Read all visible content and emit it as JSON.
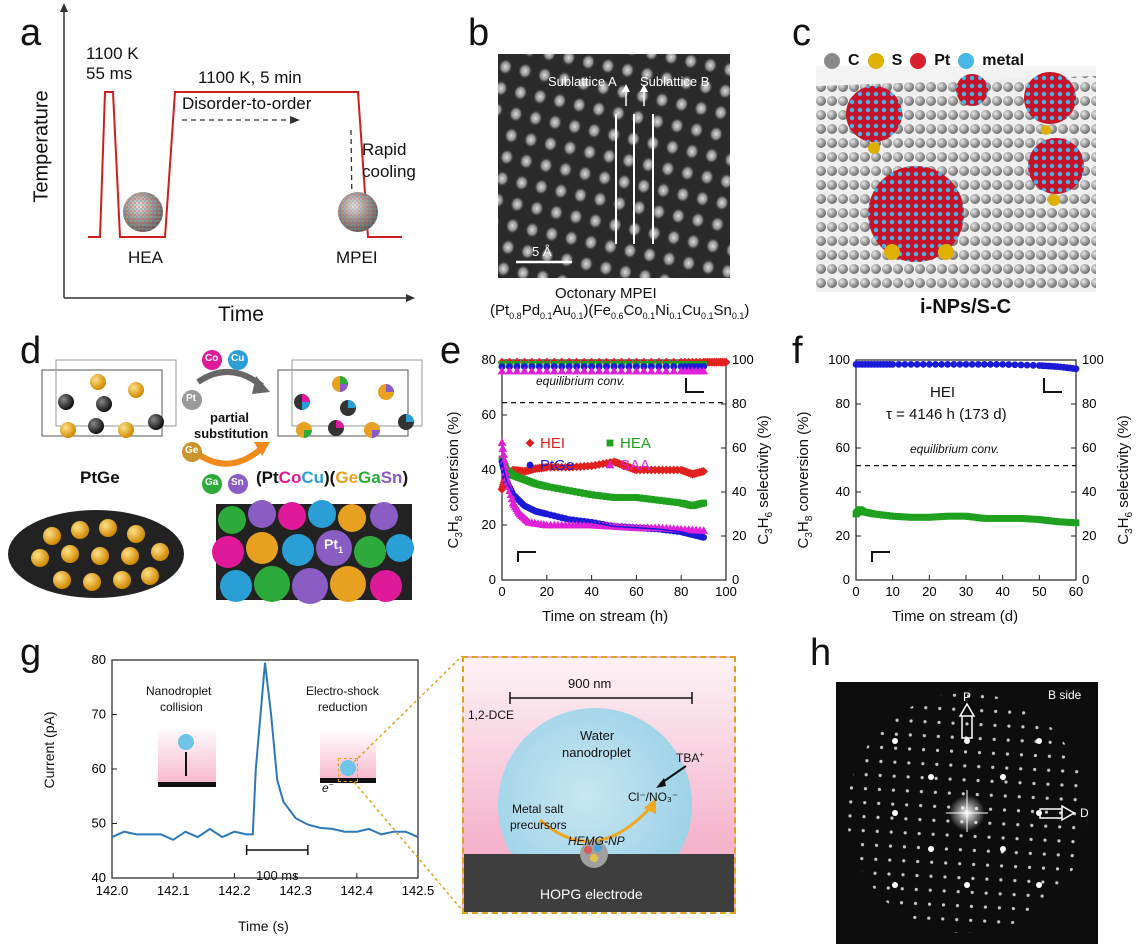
{
  "panels": {
    "a": {
      "label": "a",
      "ylabel": "Temperature",
      "xlabel": "Time",
      "pulse_top": "1100 K",
      "pulse_bottom": "55 ms",
      "anneal_top": "1100 K, 5 min",
      "anneal_bottom": "Disorder-to-order",
      "cool_1": "Rapid",
      "cool_2": "cooling",
      "start_name": "HEA",
      "end_name": "MPEI"
    },
    "b": {
      "label": "b",
      "sublattice_a": "Sublattice A",
      "sublattice_b": "Sublattice B",
      "scale": "5 Å",
      "caption1": "Octonary MPEI",
      "caption2_parts": [
        "(Pt",
        "0.8",
        "Pd",
        "0.1",
        "Au",
        "0.1",
        ")(Fe",
        "0.6",
        "Co",
        "0.1",
        "Ni",
        "0.1",
        "Cu",
        "0.1",
        "Sn",
        "0.1",
        ")"
      ]
    },
    "c": {
      "label": "c",
      "legend": [
        "C",
        "S",
        "Pt",
        "metal"
      ],
      "legend_colors": [
        "#8a8a8a",
        "#e0b000",
        "#d81f2a",
        "#45b8e8"
      ],
      "caption": "i-NPs/S-C"
    },
    "d": {
      "label": "d",
      "left_name": "PtGe",
      "process1": "partial",
      "process2": "substitution",
      "atom_pt": "Pt",
      "atom_co": "Co",
      "atom_cu": "Cu",
      "atom_ge": "Ge",
      "atom_ga": "Ga",
      "atom_sn": "Sn",
      "formula": [
        "(Pt",
        "Co",
        "Cu",
        ")(",
        "Ge",
        "Ga",
        "Sn",
        ")"
      ],
      "formula_colors": [
        "#111111",
        "#e0199a",
        "#2a9fd6",
        "#111111",
        "#e8a020",
        "#2eaa3a",
        "#8a5cc4",
        "#111111"
      ],
      "site_label": "Pt",
      "site_sub": "1"
    },
    "g": {
      "label": "g",
      "inset1_1": "Nanodroplet",
      "inset1_2": "collision",
      "inset2_1": "Electro-shock",
      "inset2_2": "reduction",
      "electron": "e",
      "scale": "100 ms",
      "schem_scale": "900 nm",
      "solvent": "1,2-DCE",
      "droplet1": "Water",
      "droplet2": "nanodroplet",
      "tba": "TBA",
      "ions": "Cl⁻/NO₃⁻",
      "salt1": "Metal salt",
      "salt2": "precursors",
      "particle": "HEMG-NP",
      "electrode": "HOPG electrode"
    },
    "h": {
      "label": "h",
      "side": "B side",
      "p": "P",
      "d": "D"
    }
  },
  "chart_data": [
    {
      "id": "e",
      "label": "e",
      "type": "scatter",
      "xlabel": "Time on stream (h)",
      "ylabel_left": "C3H8 conversion (%)",
      "ylabel_right": "C3H6 selectivity (%)",
      "xlim": [
        0,
        100
      ],
      "ylim_left": [
        0,
        80
      ],
      "ylim_right": [
        0,
        100
      ],
      "xticks": [
        0,
        20,
        40,
        60,
        80,
        100
      ],
      "yticks_left": [
        0,
        20,
        40,
        60,
        80
      ],
      "yticks_right": [
        0,
        20,
        40,
        60,
        80,
        100
      ],
      "equilibrium_label": "equilibrium conv.",
      "equilibrium_value": 64.5,
      "series": [
        {
          "name": "HEI",
          "color": "#e0201f",
          "marker": "diamond",
          "axis": "left",
          "x": [
            0,
            2,
            5,
            10,
            15,
            20,
            30,
            40,
            50,
            55,
            60,
            70,
            80,
            85,
            90
          ],
          "y": [
            33,
            38,
            40,
            39.5,
            40.5,
            41,
            41,
            41.5,
            43,
            41.5,
            40,
            40,
            40,
            38.5,
            39.5
          ]
        },
        {
          "name": "HEA",
          "color": "#1fa01f",
          "marker": "square",
          "axis": "left",
          "x": [
            0,
            2,
            5,
            10,
            15,
            20,
            30,
            40,
            50,
            60,
            70,
            80,
            85,
            90
          ],
          "y": [
            44,
            40,
            38,
            36.5,
            35,
            34,
            32.5,
            31,
            30,
            30,
            29,
            28,
            27,
            28
          ]
        },
        {
          "name": "PtGe",
          "color": "#1a1ad8",
          "marker": "circle",
          "axis": "left",
          "x": [
            0,
            2,
            5,
            10,
            15,
            20,
            30,
            40,
            50,
            60,
            70,
            80,
            85,
            90
          ],
          "y": [
            43,
            36,
            31,
            27,
            25,
            24,
            22,
            21,
            19.5,
            19,
            18.5,
            17.5,
            16.5,
            15.5
          ]
        },
        {
          "name": "SAA",
          "color": "#e020d8",
          "marker": "triangle",
          "axis": "left",
          "x": [
            0,
            2,
            5,
            8,
            12,
            20,
            30,
            40,
            50,
            60,
            70,
            80,
            90
          ],
          "y": [
            50,
            37,
            28,
            24,
            21,
            20,
            20,
            20,
            19.5,
            19,
            19,
            18.5,
            18
          ]
        },
        {
          "name": "HEI sel.",
          "color": "#e0201f",
          "marker": "diamond",
          "axis": "right",
          "x": [
            0,
            20,
            40,
            60,
            80,
            90,
            95,
            100
          ],
          "y": [
            99,
            99,
            99,
            99,
            99,
            99,
            99,
            99
          ]
        },
        {
          "name": "HEA sel.",
          "color": "#1fa01f",
          "marker": "square",
          "axis": "right",
          "x": [
            0,
            20,
            40,
            60,
            80,
            90
          ],
          "y": [
            98,
            98,
            98,
            98,
            98,
            98
          ]
        },
        {
          "name": "PtGe sel.",
          "color": "#1a1ad8",
          "marker": "circle",
          "axis": "right",
          "x": [
            0,
            20,
            40,
            60,
            80,
            90
          ],
          "y": [
            97,
            97,
            97,
            97,
            97,
            97
          ]
        },
        {
          "name": "SAA sel.",
          "color": "#e020d8",
          "marker": "triangle",
          "axis": "right",
          "x": [
            0,
            20,
            40,
            60,
            80,
            90
          ],
          "y": [
            95,
            95,
            95,
            95,
            95,
            95
          ]
        }
      ]
    },
    {
      "id": "f",
      "label": "f",
      "type": "scatter",
      "xlabel": "Time on stream (d)",
      "ylabel_left": "C3H8 conversion (%)",
      "ylabel_right": "C3H6 selectivity (%)",
      "xlim": [
        0,
        60
      ],
      "ylim_left": [
        0,
        100
      ],
      "ylim_right": [
        0,
        100
      ],
      "xticks": [
        0,
        10,
        20,
        30,
        40,
        50,
        60
      ],
      "yticks_left": [
        0,
        20,
        40,
        60,
        80,
        100
      ],
      "yticks_right": [
        0,
        20,
        40,
        60,
        80,
        100
      ],
      "equilibrium_label": "equilibrium conv.",
      "equilibrium_value": 52,
      "annotation_1": "HEI",
      "annotation_2": "τ = 4146 h (173 d)",
      "series": [
        {
          "name": "HEI conversion",
          "color": "#1fa01f",
          "marker": "square",
          "axis": "left",
          "x": [
            0,
            1,
            2,
            5,
            10,
            15,
            20,
            25,
            30,
            35,
            40,
            45,
            50,
            55,
            60
          ],
          "y": [
            30,
            32,
            31,
            30,
            29,
            28.5,
            28.5,
            29,
            29,
            28,
            28,
            28,
            27.5,
            26.5,
            26
          ]
        },
        {
          "name": "HEI selectivity",
          "color": "#1a1ad8",
          "marker": "circle",
          "axis": "right",
          "x": [
            0,
            5,
            10,
            20,
            30,
            40,
            50,
            55,
            60
          ],
          "y": [
            98,
            98,
            98,
            98,
            98,
            98,
            97.5,
            97,
            96
          ]
        }
      ]
    },
    {
      "id": "g",
      "label": "g",
      "type": "line",
      "xlabel": "Time (s)",
      "ylabel": "Current (pA)",
      "xlim": [
        142.0,
        142.5
      ],
      "ylim": [
        40,
        80
      ],
      "xticks": [
        "142.0",
        "142.1",
        "142.2",
        "142.3",
        "142.4",
        "142.5"
      ],
      "yticks": [
        40,
        50,
        60,
        70,
        80
      ],
      "color": "#2e78b7",
      "x": [
        142.0,
        142.02,
        142.04,
        142.06,
        142.08,
        142.1,
        142.12,
        142.14,
        142.16,
        142.18,
        142.2,
        142.22,
        142.23,
        142.235,
        142.25,
        142.26,
        142.27,
        142.28,
        142.3,
        142.32,
        142.34,
        142.36,
        142.38,
        142.4,
        142.42,
        142.44,
        142.46,
        142.48,
        142.5
      ],
      "y": [
        47.5,
        48.5,
        48,
        48,
        48,
        47,
        48.5,
        47.5,
        49,
        47.5,
        48.5,
        48,
        48,
        60,
        79.5,
        70,
        58,
        54,
        51,
        49.8,
        49.2,
        49,
        48.5,
        48.5,
        49,
        48,
        48.5,
        48.5,
        47.5
      ]
    }
  ]
}
